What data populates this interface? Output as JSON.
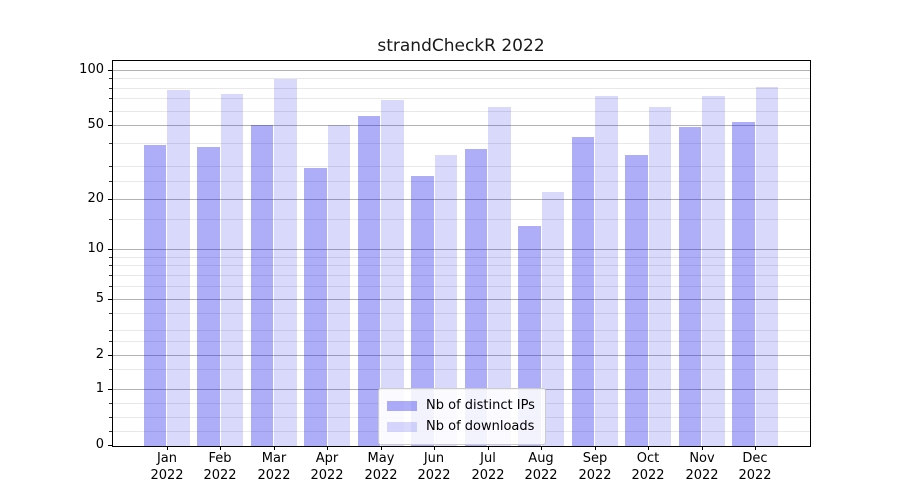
{
  "chart_data": {
    "type": "bar",
    "title": "strandCheckR 2022",
    "categories": [
      "Jan",
      "Feb",
      "Mar",
      "Apr",
      "May",
      "Jun",
      "Jul",
      "Aug",
      "Sep",
      "Oct",
      "Nov",
      "Dec"
    ],
    "category_year": "2022",
    "series": [
      {
        "name": "Nb of distinct IPs",
        "color": "#acacf8",
        "fill_rgba": "rgba(20,20,235,0.35)",
        "values": [
          40,
          39,
          51,
          30,
          57,
          27,
          38,
          14,
          44,
          35,
          50,
          53
        ]
      },
      {
        "name": "Nb of downloads",
        "color": "#d9d9fb",
        "fill_rgba": "rgba(20,20,235,0.16)",
        "values": [
          79,
          75,
          91,
          51,
          70,
          35,
          64,
          22,
          74,
          64,
          74,
          82
        ]
      }
    ],
    "xlabel": "",
    "ylabel": "",
    "y_ticks": [
      100,
      50,
      20,
      10,
      5,
      2,
      1,
      0
    ],
    "y_minor_ticks": [
      90,
      80,
      70,
      60,
      40,
      30,
      25,
      15,
      9,
      8,
      7,
      6,
      4,
      3,
      2.5,
      1.5,
      0.75,
      0.5,
      0.25
    ],
    "ylim": [
      0,
      112
    ],
    "scale": "symlog",
    "grid": true,
    "legend_position": "lower center",
    "colors": {
      "grid_major": "#b3b3b3",
      "grid_minor": "#e8e8e8",
      "axis": "#000000",
      "title_text": "#1a1a1a"
    }
  }
}
